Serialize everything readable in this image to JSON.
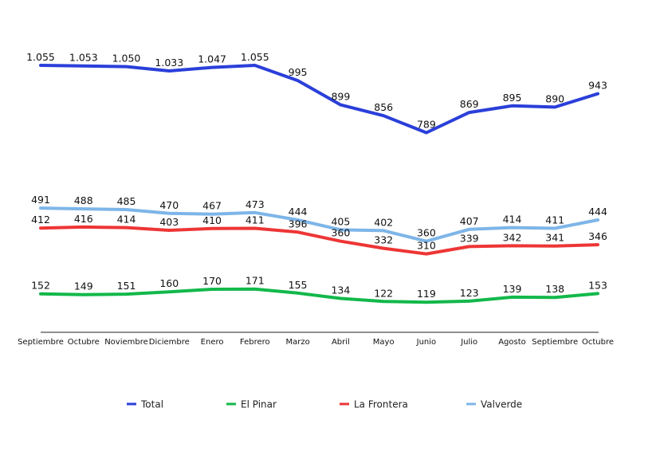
{
  "chart_data": {
    "type": "line",
    "title": "",
    "xlabel": "",
    "ylabel": "",
    "ylim": [
      0,
      1100
    ],
    "grid": false,
    "legend_position": "bottom",
    "categories": [
      "Septiembre",
      "Octubre",
      "Noviembre",
      "Diciembre",
      "Enero",
      "Febrero",
      "Marzo",
      "Abril",
      "Mayo",
      "Junio",
      "Julio",
      "Agosto",
      "Septiembre",
      "Octubre"
    ],
    "series": [
      {
        "name": "Total",
        "color": "#2a3fd9",
        "values": [
          1055,
          1053,
          1050,
          1033,
          1047,
          1055,
          995,
          899,
          856,
          789,
          869,
          895,
          890,
          943
        ],
        "labels": [
          "1.055",
          "1.053",
          "1.050",
          "1.033",
          "1.047",
          "1.055",
          "995",
          "899",
          "856",
          "789",
          "869",
          "895",
          "890",
          "943"
        ]
      },
      {
        "name": "El Pinar",
        "color": "#12b84a",
        "values": [
          152,
          149,
          151,
          160,
          170,
          171,
          155,
          134,
          122,
          119,
          123,
          139,
          138,
          153
        ],
        "labels": [
          "152",
          "149",
          "151",
          "160",
          "170",
          "171",
          "155",
          "134",
          "122",
          "119",
          "123",
          "139",
          "138",
          "153"
        ]
      },
      {
        "name": "La Frontera",
        "color": "#ee3535",
        "values": [
          412,
          416,
          414,
          403,
          410,
          411,
          396,
          360,
          332,
          310,
          339,
          342,
          341,
          346
        ],
        "labels": [
          "412",
          "416",
          "414",
          "403",
          "410",
          "411",
          "396",
          "360",
          "332",
          "310",
          "339",
          "342",
          "341",
          "346"
        ]
      },
      {
        "name": "Valverde",
        "color": "#7db5e8",
        "values": [
          491,
          488,
          485,
          470,
          467,
          473,
          444,
          405,
          402,
          360,
          407,
          414,
          411,
          444
        ],
        "labels": [
          "491",
          "488",
          "485",
          "470",
          "467",
          "473",
          "444",
          "405",
          "402",
          "360",
          "407",
          "414",
          "411",
          "444"
        ]
      }
    ]
  }
}
